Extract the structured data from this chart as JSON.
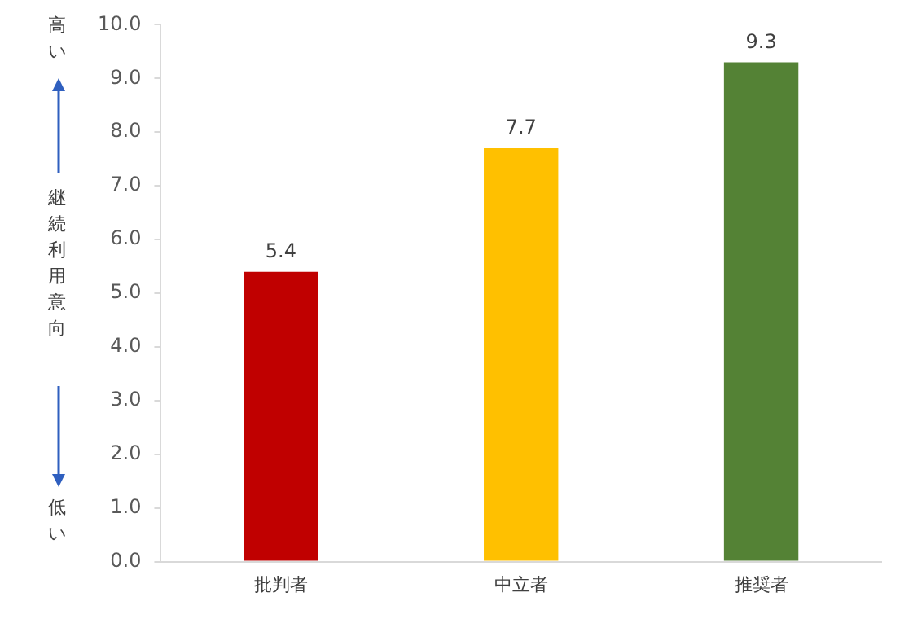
{
  "chart_data": {
    "type": "bar",
    "categories": [
      "批判者",
      "中立者",
      "推奨者"
    ],
    "values": [
      5.4,
      7.7,
      9.3
    ],
    "colors": [
      "#c00000",
      "#ffc000",
      "#548235"
    ],
    "ylabel": "継続利用意向",
    "annotations": [
      "高い",
      "低い"
    ],
    "ylim": [
      0,
      10
    ],
    "yticks": [
      {
        "value": 0,
        "label": "0.0"
      },
      {
        "value": 1,
        "label": "1.0"
      },
      {
        "value": 2,
        "label": "2.0"
      },
      {
        "value": 3,
        "label": "3.0"
      },
      {
        "value": 4,
        "label": "4.0"
      },
      {
        "value": 5,
        "label": "5.0"
      },
      {
        "value": 6,
        "label": "6.0"
      },
      {
        "value": 7,
        "label": "7.0"
      },
      {
        "value": 8,
        "label": "8.0"
      },
      {
        "value": 9,
        "label": "9.0"
      },
      {
        "value": 10,
        "label": "10.0"
      }
    ],
    "data_labels": true,
    "grid": false,
    "legend": false
  }
}
